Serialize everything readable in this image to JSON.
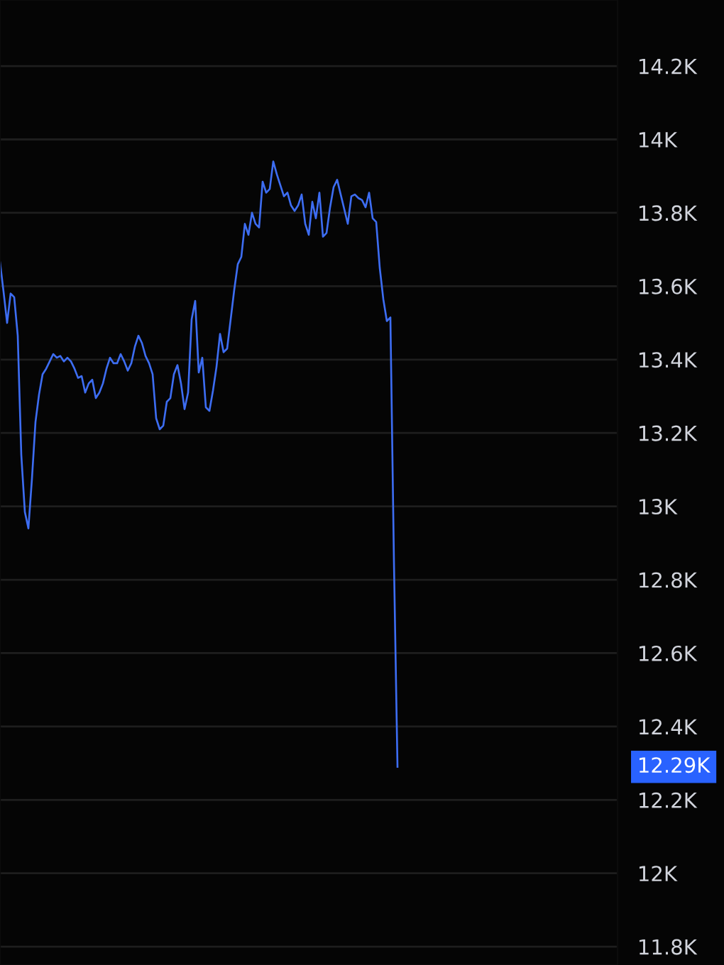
{
  "chart_data": {
    "type": "line",
    "categories": [
      null,
      null,
      null,
      null,
      null,
      null,
      null,
      null,
      null,
      null,
      null,
      null,
      null,
      null,
      null,
      null,
      null,
      null,
      null,
      null,
      null,
      null,
      null,
      null,
      null,
      null,
      null,
      null,
      null,
      null,
      null,
      null,
      null,
      null,
      null,
      null,
      null,
      null,
      null,
      null,
      null,
      null,
      null,
      null,
      null,
      null,
      null,
      null,
      null,
      null,
      null,
      null,
      null,
      null,
      null,
      null,
      null,
      null,
      null,
      null,
      null,
      null,
      null,
      null,
      null,
      null,
      null,
      null,
      null,
      null,
      null,
      null,
      null,
      null,
      null,
      null,
      null,
      null,
      null,
      null,
      null,
      null,
      null,
      null,
      null,
      null,
      null,
      null,
      null,
      null,
      null,
      null,
      null,
      null,
      null,
      null,
      null,
      null,
      null,
      null,
      null,
      null,
      null,
      null,
      null,
      null,
      null,
      null,
      null,
      null,
      null,
      null,
      null,
      null,
      null,
      null,
      null,
      null,
      null,
      null,
      null,
      null,
      null,
      null,
      null,
      null,
      null,
      null,
      null,
      null,
      null,
      null,
      null,
      null,
      null,
      null,
      null,
      null,
      null,
      null,
      null,
      null,
      null,
      null,
      null,
      null,
      null,
      null,
      null,
      null,
      null,
      null,
      null,
      null,
      null,
      null,
      null,
      null,
      null,
      null,
      null,
      null,
      null,
      null,
      null,
      null,
      null,
      null,
      null,
      null,
      null,
      null,
      null,
      null,
      null
    ],
    "series": [
      {
        "color": "#3d6df2",
        "values": [
          13665,
          13585,
          13500,
          13580,
          13570,
          13465,
          13140,
          12985,
          12940,
          13075,
          13230,
          13305,
          13360,
          13375,
          13395,
          13415,
          13405,
          13410,
          13395,
          13405,
          13395,
          13375,
          13350,
          13355,
          13310,
          13335,
          13345,
          13295,
          13310,
          13335,
          13375,
          13405,
          13390,
          13390,
          13415,
          13395,
          13370,
          13390,
          13435,
          13465,
          13445,
          13410,
          13390,
          13360,
          13240,
          13210,
          13220,
          13285,
          13295,
          13360,
          13385,
          13335,
          13265,
          13310,
          13510,
          13560,
          13365,
          13405,
          13270,
          13260,
          13315,
          13380,
          13470,
          13420,
          13430,
          13510,
          13590,
          13660,
          13680,
          13770,
          13740,
          13800,
          13770,
          13760,
          13885,
          13855,
          13865,
          13940,
          13905,
          13875,
          13845,
          13855,
          13820,
          13805,
          13820,
          13850,
          13770,
          13740,
          13830,
          13785,
          13855,
          13735,
          13745,
          13815,
          13870,
          13890,
          13850,
          13810,
          13770,
          13845,
          13850,
          13840,
          13835,
          13815,
          13855,
          13785,
          13775,
          13650,
          13565,
          13505,
          13515,
          12850,
          12290,
          null,
          null,
          null,
          null,
          null,
          null,
          null,
          null,
          null,
          null,
          null,
          null,
          null,
          null,
          null,
          null,
          null,
          null,
          null,
          null,
          null,
          null,
          null,
          null,
          null,
          null,
          null,
          null,
          null,
          null,
          null,
          null,
          null,
          null,
          null,
          null,
          null,
          null,
          null,
          null,
          null,
          null,
          null,
          null,
          null,
          null,
          null,
          null,
          null,
          null,
          null,
          null,
          null,
          null,
          null,
          null,
          null,
          null,
          null,
          null,
          null,
          null
        ]
      }
    ],
    "ylim": [
      11750,
      14380
    ],
    "yticks": [
      {
        "value": 11800,
        "label": "11.8K"
      },
      {
        "value": 12000,
        "label": "12K"
      },
      {
        "value": 12200,
        "label": "12.2K"
      },
      {
        "value": 12400,
        "label": "12.4K"
      },
      {
        "value": 12600,
        "label": "12.6K"
      },
      {
        "value": 12800,
        "label": "12.8K"
      },
      {
        "value": 13000,
        "label": "13K"
      },
      {
        "value": 13200,
        "label": "13.2K"
      },
      {
        "value": 13400,
        "label": "13.4K"
      },
      {
        "value": 13600,
        "label": "13.6K"
      },
      {
        "value": 13800,
        "label": "13.8K"
      },
      {
        "value": 14000,
        "label": "14K"
      },
      {
        "value": 14200,
        "label": "14.2K"
      }
    ],
    "grid": "y",
    "tick_labels": "y",
    "line_style": "solid",
    "annotations": [
      "12.29K"
    ]
  }
}
